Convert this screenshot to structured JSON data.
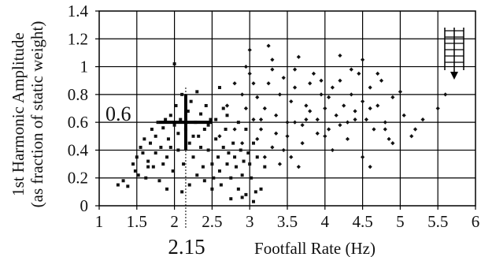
{
  "chart_data": {
    "type": "scatter",
    "xlabel": "Footfall Rate (Hz)",
    "ylabel_line1": "1st Harmonic Amplitude",
    "ylabel_line2": "(as fraction of static weight)",
    "xlim": [
      1,
      6
    ],
    "ylim": [
      0,
      1.4
    ],
    "x_ticks": [
      "1",
      "1.5",
      "2",
      "2.5",
      "3",
      "3.5",
      "4",
      "4.5",
      "5",
      "5.5",
      "6"
    ],
    "y_ticks": [
      "0",
      "0.2",
      "0.4",
      "0.6",
      "0.8",
      "1",
      "1.2",
      "1.4"
    ],
    "grid": true,
    "annotations": [
      {
        "text": "0.6",
        "x": 2.15,
        "y": 0.6,
        "kind": "y-marker"
      },
      {
        "text": "2.15",
        "x": 2.15,
        "y": 0,
        "kind": "x-marker"
      }
    ],
    "marker_point": {
      "x": 2.15,
      "y": 0.6
    },
    "series": [
      {
        "marker": "square",
        "points": [
          [
            1.25,
            0.15
          ],
          [
            1.32,
            0.18
          ],
          [
            1.38,
            0.14
          ],
          [
            1.45,
            0.3
          ],
          [
            1.48,
            0.25
          ],
          [
            1.5,
            0.35
          ],
          [
            1.52,
            0.22
          ],
          [
            1.55,
            0.42
          ],
          [
            1.58,
            0.38
          ],
          [
            1.6,
            0.48
          ],
          [
            1.62,
            0.2
          ],
          [
            1.65,
            0.32
          ],
          [
            1.68,
            0.45
          ],
          [
            1.7,
            0.55
          ],
          [
            1.72,
            0.28
          ],
          [
            1.75,
            0.5
          ],
          [
            1.78,
            0.6
          ],
          [
            1.8,
            0.18
          ],
          [
            1.82,
            0.42
          ],
          [
            1.85,
            0.56
          ],
          [
            1.88,
            0.62
          ],
          [
            1.9,
            0.35
          ],
          [
            1.92,
            0.48
          ],
          [
            1.95,
            0.65
          ],
          [
            1.98,
            0.25
          ],
          [
            2.0,
            0.58
          ],
          [
            2.02,
            0.72
          ],
          [
            2.05,
            0.4
          ],
          [
            2.08,
            0.62
          ],
          [
            2.1,
            0.8
          ],
          [
            2.12,
            0.3
          ],
          [
            2.15,
            0.55
          ],
          [
            2.18,
            0.68
          ],
          [
            2.2,
            0.45
          ],
          [
            2.22,
            0.75
          ],
          [
            2.25,
            0.35
          ],
          [
            2.28,
            0.6
          ],
          [
            2.3,
            0.82
          ],
          [
            2.32,
            0.5
          ],
          [
            2.35,
            0.66
          ],
          [
            2.38,
            0.28
          ],
          [
            2.4,
            0.55
          ],
          [
            2.42,
            0.72
          ],
          [
            2.45,
            0.4
          ],
          [
            2.48,
            0.62
          ],
          [
            2.5,
            0.3
          ],
          [
            2.52,
            0.2
          ],
          [
            2.55,
            0.48
          ],
          [
            2.58,
            0.35
          ],
          [
            2.6,
            0.25
          ],
          [
            2.62,
            0.15
          ],
          [
            2.65,
            0.42
          ],
          [
            2.68,
            0.55
          ],
          [
            2.7,
            0.3
          ],
          [
            2.72,
            0.38
          ],
          [
            2.75,
            0.2
          ],
          [
            2.78,
            0.45
          ],
          [
            2.8,
            0.35
          ],
          [
            2.82,
            0.28
          ],
          [
            2.85,
            0.12
          ],
          [
            2.88,
            0.4
          ],
          [
            2.9,
            0.22
          ],
          [
            2.92,
            0.32
          ],
          [
            2.95,
            0.08
          ],
          [
            2.98,
            0.38
          ],
          [
            3.0,
            0.3
          ],
          [
            3.02,
            0.2
          ],
          [
            3.05,
            0.45
          ],
          [
            3.08,
            0.1
          ],
          [
            3.1,
            0.35
          ],
          [
            1.85,
            0.3
          ],
          [
            1.95,
            0.42
          ],
          [
            2.05,
            0.52
          ],
          [
            1.75,
            0.38
          ],
          [
            1.65,
            0.28
          ],
          [
            2.25,
            0.5
          ],
          [
            2.35,
            0.42
          ],
          [
            2.45,
            0.58
          ],
          [
            2.55,
            0.62
          ],
          [
            2.65,
            0.7
          ],
          [
            2.0,
            1.02
          ],
          [
            2.6,
            0.85
          ],
          [
            2.7,
            0.65
          ],
          [
            2.85,
            0.6
          ],
          [
            2.95,
            0.55
          ],
          [
            3.15,
            0.12
          ],
          [
            3.2,
            0.28
          ],
          [
            2.4,
            0.18
          ],
          [
            2.3,
            0.22
          ],
          [
            2.2,
            0.15
          ],
          [
            1.9,
            0.12
          ],
          [
            2.1,
            0.1
          ],
          [
            2.5,
            0.12
          ],
          [
            2.75,
            0.05
          ],
          [
            2.9,
            0.06
          ],
          [
            3.05,
            0.03
          ]
        ]
      },
      {
        "marker": "diamond",
        "points": [
          [
            2.7,
            0.72
          ],
          [
            2.8,
            0.88
          ],
          [
            2.9,
            0.8
          ],
          [
            3.0,
            0.95
          ],
          [
            3.05,
            0.62
          ],
          [
            3.1,
            0.78
          ],
          [
            3.15,
            0.55
          ],
          [
            3.2,
            0.7
          ],
          [
            3.25,
            0.88
          ],
          [
            3.3,
            1.05
          ],
          [
            3.35,
            0.65
          ],
          [
            3.4,
            0.8
          ],
          [
            3.45,
            0.92
          ],
          [
            3.5,
            0.6
          ],
          [
            3.55,
            0.75
          ],
          [
            3.6,
            0.85
          ],
          [
            3.65,
            1.07
          ],
          [
            3.7,
            0.58
          ],
          [
            3.75,
            0.72
          ],
          [
            3.8,
            0.88
          ],
          [
            3.85,
            0.95
          ],
          [
            3.9,
            0.62
          ],
          [
            3.95,
            0.8
          ],
          [
            4.0,
            0.7
          ],
          [
            4.05,
            0.55
          ],
          [
            4.1,
            0.85
          ],
          [
            4.15,
            0.65
          ],
          [
            4.2,
            0.9
          ],
          [
            4.25,
            0.72
          ],
          [
            4.3,
            0.6
          ],
          [
            4.35,
            0.8
          ],
          [
            4.4,
            0.68
          ],
          [
            4.45,
            0.95
          ],
          [
            4.5,
            0.75
          ],
          [
            4.55,
            0.62
          ],
          [
            4.6,
            0.85
          ],
          [
            4.65,
            0.55
          ],
          [
            4.7,
            0.72
          ],
          [
            4.75,
            0.9
          ],
          [
            4.8,
            0.6
          ],
          [
            4.85,
            0.48
          ],
          [
            4.9,
            0.78
          ],
          [
            5.0,
            0.82
          ],
          [
            5.05,
            0.65
          ],
          [
            5.2,
            0.55
          ],
          [
            5.3,
            0.62
          ],
          [
            5.5,
            0.7
          ],
          [
            5.6,
            0.8
          ],
          [
            4.2,
            1.08
          ],
          [
            4.5,
            1.05
          ],
          [
            3.0,
            1.12
          ],
          [
            3.25,
            1.15
          ],
          [
            2.9,
            0.45
          ],
          [
            3.1,
            0.48
          ],
          [
            3.3,
            0.42
          ],
          [
            3.5,
            0.5
          ],
          [
            3.7,
            0.45
          ],
          [
            3.9,
            0.52
          ],
          [
            4.1,
            0.4
          ],
          [
            4.3,
            0.48
          ],
          [
            4.5,
            0.35
          ],
          [
            4.6,
            0.28
          ],
          [
            3.4,
            0.3
          ],
          [
            3.2,
            0.35
          ],
          [
            2.6,
            0.5
          ],
          [
            2.8,
            0.55
          ],
          [
            3.6,
            0.6
          ],
          [
            3.8,
            0.68
          ],
          [
            4.0,
            0.5
          ],
          [
            4.2,
            0.58
          ],
          [
            4.4,
            0.62
          ],
          [
            4.6,
            0.7
          ],
          [
            4.8,
            0.55
          ],
          [
            3.45,
            0.4
          ],
          [
            3.75,
            0.62
          ],
          [
            4.05,
            0.78
          ],
          [
            3.35,
            0.52
          ],
          [
            3.15,
            0.62
          ],
          [
            2.95,
            0.7
          ],
          [
            3.55,
            0.35
          ],
          [
            3.65,
            0.28
          ],
          [
            4.9,
            0.45
          ],
          [
            5.15,
            0.5
          ],
          [
            4.7,
            0.95
          ],
          [
            4.35,
            0.98
          ],
          [
            3.95,
            0.9
          ],
          [
            3.6,
            0.98
          ],
          [
            3.3,
            0.98
          ],
          [
            3.05,
            0.88
          ],
          [
            2.95,
            1.0
          ]
        ]
      }
    ]
  }
}
